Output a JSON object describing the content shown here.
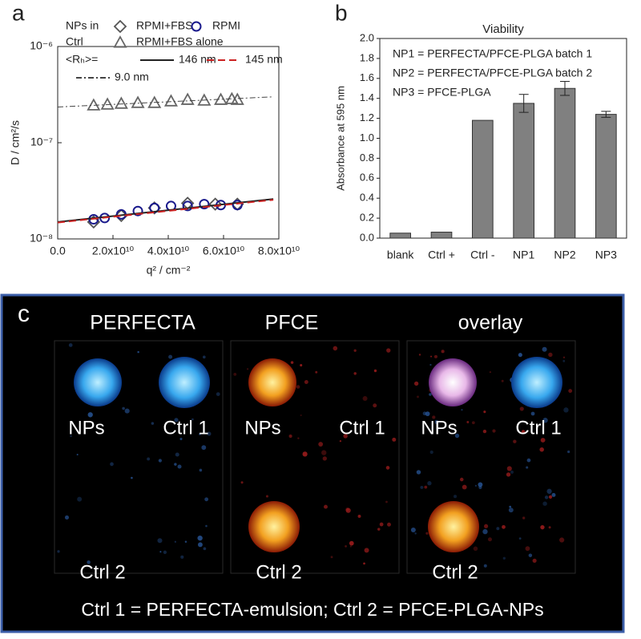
{
  "chart_data": [
    {
      "type": "scatter",
      "panel_label": "a",
      "xlabel": "q² / cm⁻²",
      "ylabel": "D / cm²/s",
      "log_y": true,
      "xlim": [
        0,
        80000000000
      ],
      "ylim": [
        1e-08,
        1e-06
      ],
      "xticks": [
        {
          "value": 0,
          "label": "0.0"
        },
        {
          "value": 20000000000,
          "label": "2.0x10¹⁰"
        },
        {
          "value": 40000000000,
          "label": "4.0x10¹⁰"
        },
        {
          "value": 60000000000,
          "label": "6.0x10¹⁰"
        },
        {
          "value": 80000000000,
          "label": "8.0x10¹⁰"
        }
      ],
      "yticks": [
        {
          "value": 1e-08,
          "label": "10⁻⁸"
        },
        {
          "value": 1e-07,
          "label": "10⁻⁷"
        },
        {
          "value": 1e-06,
          "label": "10⁻⁶"
        }
      ],
      "legend_labels": [
        "NPs in",
        "Ctrl",
        "<Rₕ>="
      ],
      "series": [
        {
          "name": "RPMI+FBS",
          "marker": "diamond",
          "color": "#555555",
          "x": [
            13000000000,
            23000000000,
            35000000000,
            47000000000,
            57000000000,
            65000000000
          ],
          "values": [
            1.5e-08,
            1.75e-08,
            2.1e-08,
            2.35e-08,
            2.3e-08,
            2.3e-08
          ]
        },
        {
          "name": "RPMI",
          "marker": "circle",
          "color": "#1a1a8c",
          "x": [
            13000000000,
            17000000000,
            23000000000,
            29000000000,
            35000000000,
            41000000000,
            47000000000,
            53000000000,
            59000000000,
            65000000000
          ],
          "values": [
            1.6e-08,
            1.65e-08,
            1.8e-08,
            1.95e-08,
            2.1e-08,
            2.2e-08,
            2.2e-08,
            2.3e-08,
            2.25e-08,
            2.25e-08
          ]
        },
        {
          "name": "RPMI+FBS alone",
          "marker": "triangle",
          "color": "#666666",
          "x": [
            13000000000,
            18000000000,
            23000000000,
            29000000000,
            35000000000,
            41000000000,
            47000000000,
            53000000000,
            59000000000,
            63000000000,
            65000000000
          ],
          "values": [
            2.45e-07,
            2.5e-07,
            2.55e-07,
            2.6e-07,
            2.6e-07,
            2.7e-07,
            2.8e-07,
            2.75e-07,
            2.8e-07,
            2.85e-07,
            2.8e-07
          ]
        },
        {
          "name": "146 nm",
          "line_style": "solid",
          "color": "#222222",
          "x": [
            0,
            78000000000
          ],
          "values": [
            1.5e-08,
            2.6e-08
          ]
        },
        {
          "name": "145 nm",
          "line_style": "dashed",
          "color": "#cc2222",
          "x": [
            0,
            78000000000
          ],
          "values": [
            1.48e-08,
            2.55e-08
          ]
        },
        {
          "name": "9.0 nm",
          "line_style": "dashdot",
          "color": "#444444",
          "x": [
            0,
            78000000000
          ],
          "values": [
            2.35e-07,
            3e-07
          ]
        }
      ]
    },
    {
      "type": "bar",
      "panel_label": "b",
      "title": "Viability",
      "ylabel": "Absorbance at 595 nm",
      "annotations": [
        "NP1 = PERFECTA/PFCE-PLGA batch 1",
        "NP2 = PERFECTA/PFCE-PLGA batch 2",
        "NP3 = PFCE-PLGA"
      ],
      "categories": [
        "blank",
        "Ctrl +",
        "Ctrl -",
        "NP1",
        "NP2",
        "NP3"
      ],
      "values": [
        0.05,
        0.06,
        1.18,
        1.35,
        1.5,
        1.24
      ],
      "errors": [
        0,
        0,
        0,
        0.09,
        0.07,
        0.03
      ],
      "color": "#808080",
      "ylim": [
        0,
        2
      ],
      "yticks": [
        {
          "value": 0,
          "label": "0.0"
        },
        {
          "value": 0.2,
          "label": "0.2"
        },
        {
          "value": 0.4,
          "label": "0.4"
        },
        {
          "value": 0.6,
          "label": "0.6"
        },
        {
          "value": 0.8,
          "label": "0.8"
        },
        {
          "value": 1,
          "label": "1.0"
        },
        {
          "value": 1.2,
          "label": "1.2"
        },
        {
          "value": 1.4,
          "label": "1.4"
        },
        {
          "value": 1.6,
          "label": "1.6"
        },
        {
          "value": 1.8,
          "label": "1.8"
        },
        {
          "value": 2,
          "label": "2.0"
        }
      ]
    }
  ],
  "image_panel": {
    "label": "c",
    "columns": [
      {
        "title": "PERFECTA",
        "spots": [
          "NPs",
          "Ctrl 1",
          "Ctrl 2"
        ]
      },
      {
        "title": "PFCE",
        "spots": [
          "NPs",
          "Ctrl 1",
          "Ctrl 2"
        ]
      },
      {
        "title": "overlay",
        "spots": [
          "NPs",
          "Ctrl 1",
          "Ctrl 2"
        ]
      }
    ],
    "caption": "Ctrl 1 = PERFECTA-emulsion; Ctrl 2 = PFCE-PLGA-NPs"
  }
}
